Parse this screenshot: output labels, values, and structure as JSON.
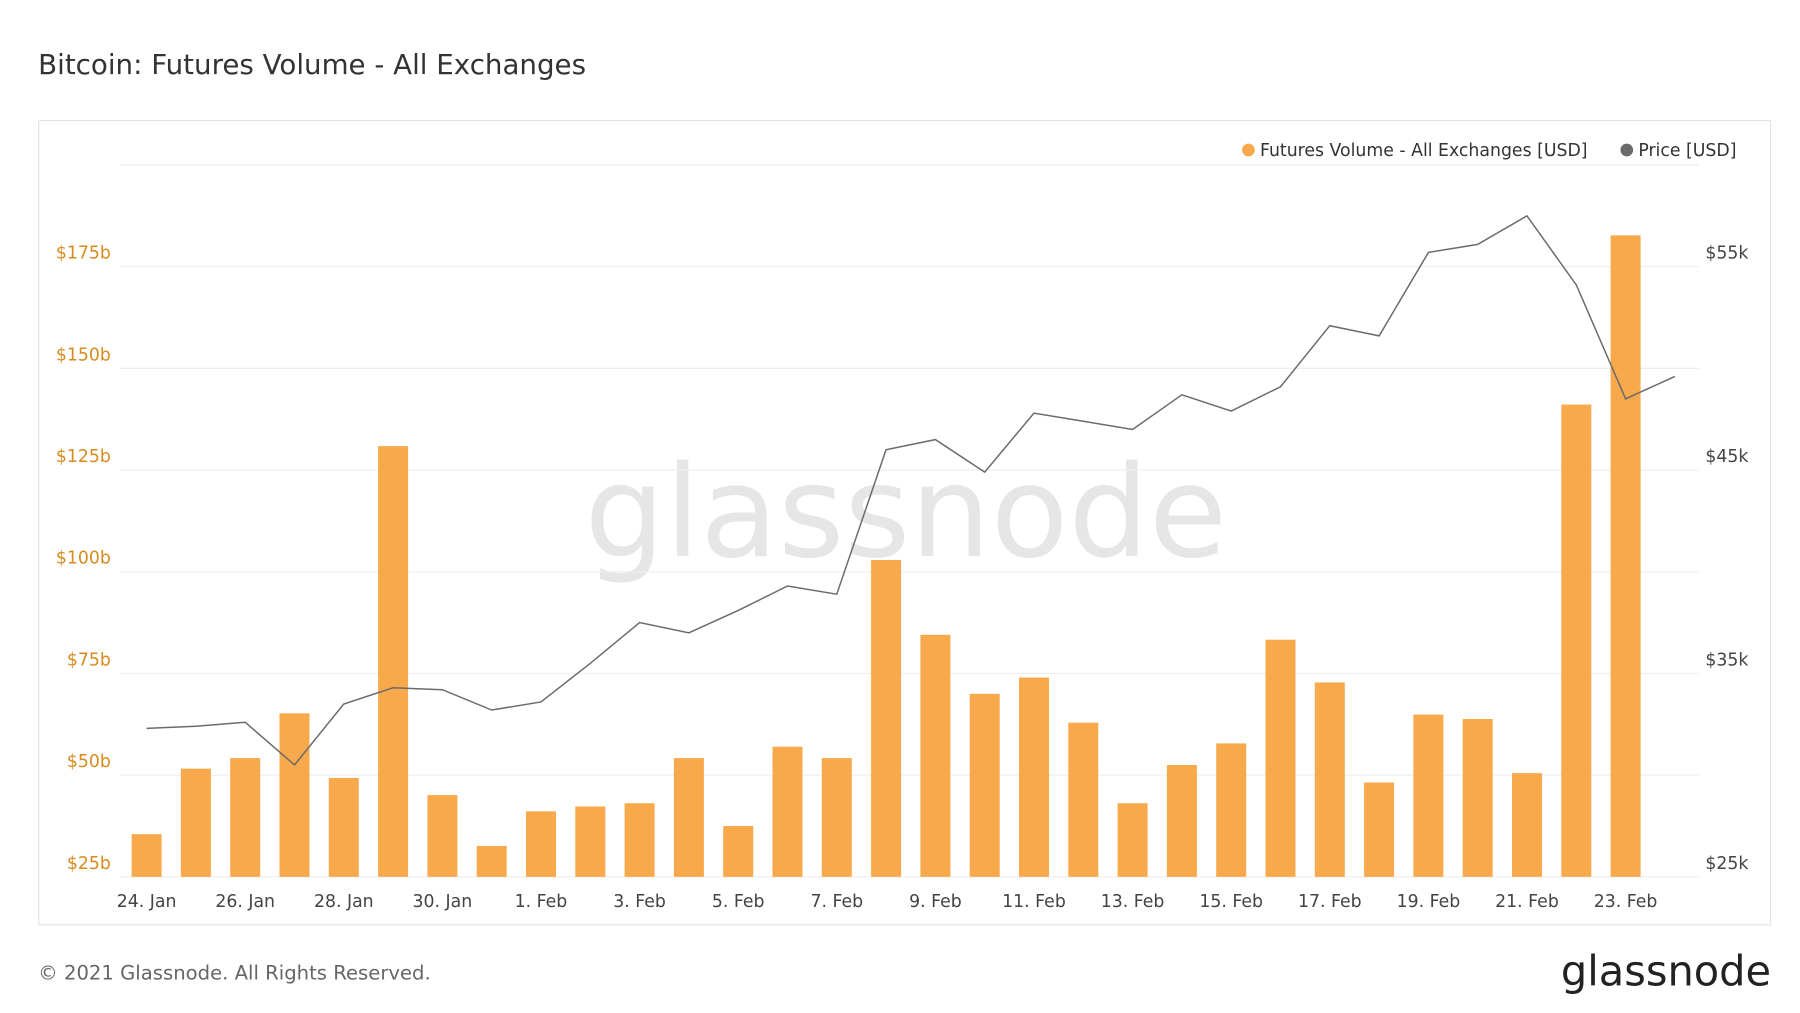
{
  "chart_data": {
    "type": "bar-line",
    "title": "Bitcoin: Futures Volume - All Exchanges",
    "watermark": "glassnode",
    "footer": "© 2021 Glassnode. All Rights Reserved.",
    "logo": "glassnode",
    "categories": [
      "24. Jan",
      null,
      "26. Jan",
      null,
      "28. Jan",
      null,
      "30. Jan",
      null,
      "1. Feb",
      null,
      "3. Feb",
      null,
      "5. Feb",
      null,
      "7. Feb",
      null,
      "9. Feb",
      null,
      "11. Feb",
      null,
      "13. Feb",
      null,
      "15. Feb",
      null,
      "17. Feb",
      null,
      "19. Feb",
      null,
      "21. Feb",
      null,
      "23. Feb",
      null
    ],
    "series": [
      {
        "name": "Futures Volume - All Exchanges [USD]",
        "color": "#f7a94b",
        "type": "bar",
        "values": [
          35.5,
          51.6,
          54.2,
          65.2,
          49.3,
          130.9,
          45.1,
          32.6,
          41.1,
          42.3,
          43.1,
          54.2,
          37.5,
          57.0,
          54.2,
          102.9,
          84.5,
          70.0,
          74.0,
          62.9,
          43.1,
          52.5,
          57.8,
          83.3,
          72.8,
          48.2,
          64.9,
          63.8,
          50.5,
          141.1,
          182.7,
          null
        ]
      },
      {
        "name": "Price [USD]",
        "color": "#6b6b6b",
        "type": "line",
        "axis": "y2",
        "values": [
          32300,
          32400,
          32600,
          30500,
          33500,
          34300,
          34200,
          33200,
          33600,
          35500,
          37500,
          37000,
          38100,
          39300,
          38900,
          46000,
          46500,
          44900,
          47800,
          47400,
          47000,
          48700,
          47900,
          49100,
          52100,
          51600,
          55700,
          56100,
          57500,
          54100,
          48500,
          49600
        ]
      }
    ],
    "ylim": [
      25,
      200
    ],
    "yticks": [
      {
        "value": 25,
        "label": "$25b"
      },
      {
        "value": 50,
        "label": "$50b"
      },
      {
        "value": 75,
        "label": "$75b"
      },
      {
        "value": 100,
        "label": "$100b"
      },
      {
        "value": 125,
        "label": "$125b"
      },
      {
        "value": 150,
        "label": "$150b"
      },
      {
        "value": 175,
        "label": "$175b"
      }
    ],
    "y2lim": [
      25000,
      60000
    ],
    "y2ticks": [
      {
        "value": 25000,
        "label": "$25k"
      },
      {
        "value": 35000,
        "label": "$35k"
      },
      {
        "value": 45000,
        "label": "$45k"
      },
      {
        "value": 55000,
        "label": "$55k"
      }
    ],
    "grid": true,
    "legend": "top-right"
  }
}
